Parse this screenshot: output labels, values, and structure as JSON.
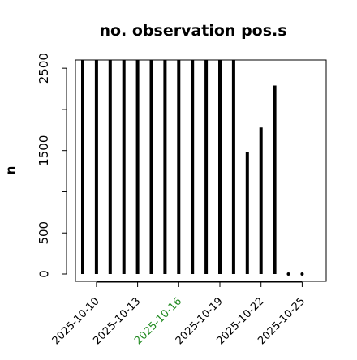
{
  "chart_data": {
    "type": "bar",
    "title": "no. observation pos.s",
    "xlabel": "",
    "ylabel": "n",
    "x_tick_labels": [
      "2025-10-10",
      "2025-10-13",
      "2025-10-16",
      "2025-10-19",
      "2025-10-22",
      "2025-10-25"
    ],
    "highlighted_tick_label": "2025-10-16",
    "highlight_color": "#228B22",
    "y_ticks": [
      0,
      500,
      1000,
      1500,
      2000,
      2500
    ],
    "y_tick_labels": [
      "0",
      "500",
      "",
      "1500",
      "",
      "2500"
    ],
    "ylim": [
      0,
      2600
    ],
    "x": [
      "2025-10-09",
      "2025-10-10",
      "2025-10-11",
      "2025-10-12",
      "2025-10-13",
      "2025-10-14",
      "2025-10-15",
      "2025-10-16",
      "2025-10-17",
      "2025-10-18",
      "2025-10-19",
      "2025-10-20",
      "2025-10-21",
      "2025-10-22",
      "2025-10-23",
      "2025-10-24",
      "2025-10-25"
    ],
    "values": [
      2600,
      2600,
      2600,
      2600,
      2600,
      2600,
      2600,
      2600,
      2600,
      2600,
      2600,
      2600,
      1480,
      1780,
      2290,
      0,
      0
    ],
    "bar_color": "#000000",
    "grid": false
  }
}
